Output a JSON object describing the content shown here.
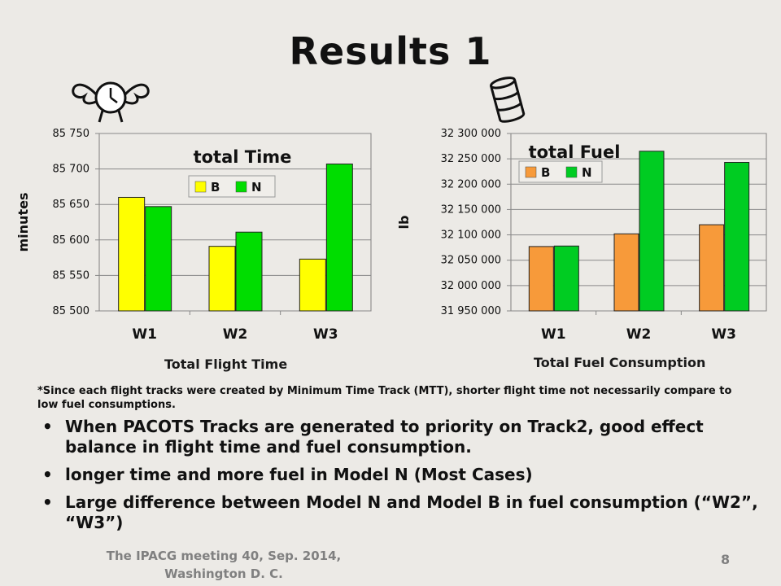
{
  "slide": {
    "title": "Results 1",
    "note": "*Since each flight tracks were created by Minimum Time Track (MTT), shorter flight time not necessarily compare to low fuel consumptions.",
    "bullets": [
      "When PACOTS Tracks are generated to priority on Track2, good effect balance in flight time and fuel consumption.",
      "longer time and more fuel in Model N (Most Cases)",
      "Large difference between Model N and Model B in fuel consumption (“W2”, “W3”)"
    ],
    "footer": "The IPACG meeting 40, Sep. 2014, Washington D. C.",
    "page_number": "8",
    "icons": [
      "winged-clock-icon",
      "fuel-barrel-icon"
    ]
  },
  "chart_data": [
    {
      "type": "bar",
      "title": "total Time",
      "caption": "Total Flight Time",
      "ylabel": "minutes",
      "xlabel": "",
      "categories": [
        "W1",
        "W2",
        "W3"
      ],
      "ylim": [
        85500,
        85750
      ],
      "yticks": [
        85500,
        85550,
        85600,
        85650,
        85700,
        85750
      ],
      "ytick_labels": [
        "85 500",
        "85 550",
        "85 600",
        "85 650",
        "85 700",
        "85 750"
      ],
      "series": [
        {
          "name": "B",
          "color": "#ffff00",
          "values": [
            85660,
            85591,
            85573
          ]
        },
        {
          "name": "N",
          "color": "#00dd00",
          "values": [
            85647,
            85611,
            85707
          ]
        }
      ],
      "grid": true,
      "legend": "top-center"
    },
    {
      "type": "bar",
      "title": "total Fuel",
      "caption": "Total Fuel Consumption",
      "ylabel": "lb",
      "xlabel": "",
      "categories": [
        "W1",
        "W2",
        "W3"
      ],
      "ylim": [
        31950000,
        32300000
      ],
      "yticks": [
        31950000,
        32000000,
        32050000,
        32100000,
        32150000,
        32200000,
        32250000,
        32300000
      ],
      "ytick_labels": [
        "31 950 000",
        "32 000 000",
        "32 050 000",
        "32 100 000",
        "32 150 000",
        "32 200 000",
        "32 250 000",
        "32 300 000"
      ],
      "series": [
        {
          "name": "B",
          "color": "#f79a3a",
          "values": [
            32077000,
            32102000,
            32120000
          ]
        },
        {
          "name": "N",
          "color": "#00cc22",
          "values": [
            32078000,
            32265000,
            32243000
          ]
        }
      ],
      "grid": true,
      "legend": "top-left"
    }
  ]
}
